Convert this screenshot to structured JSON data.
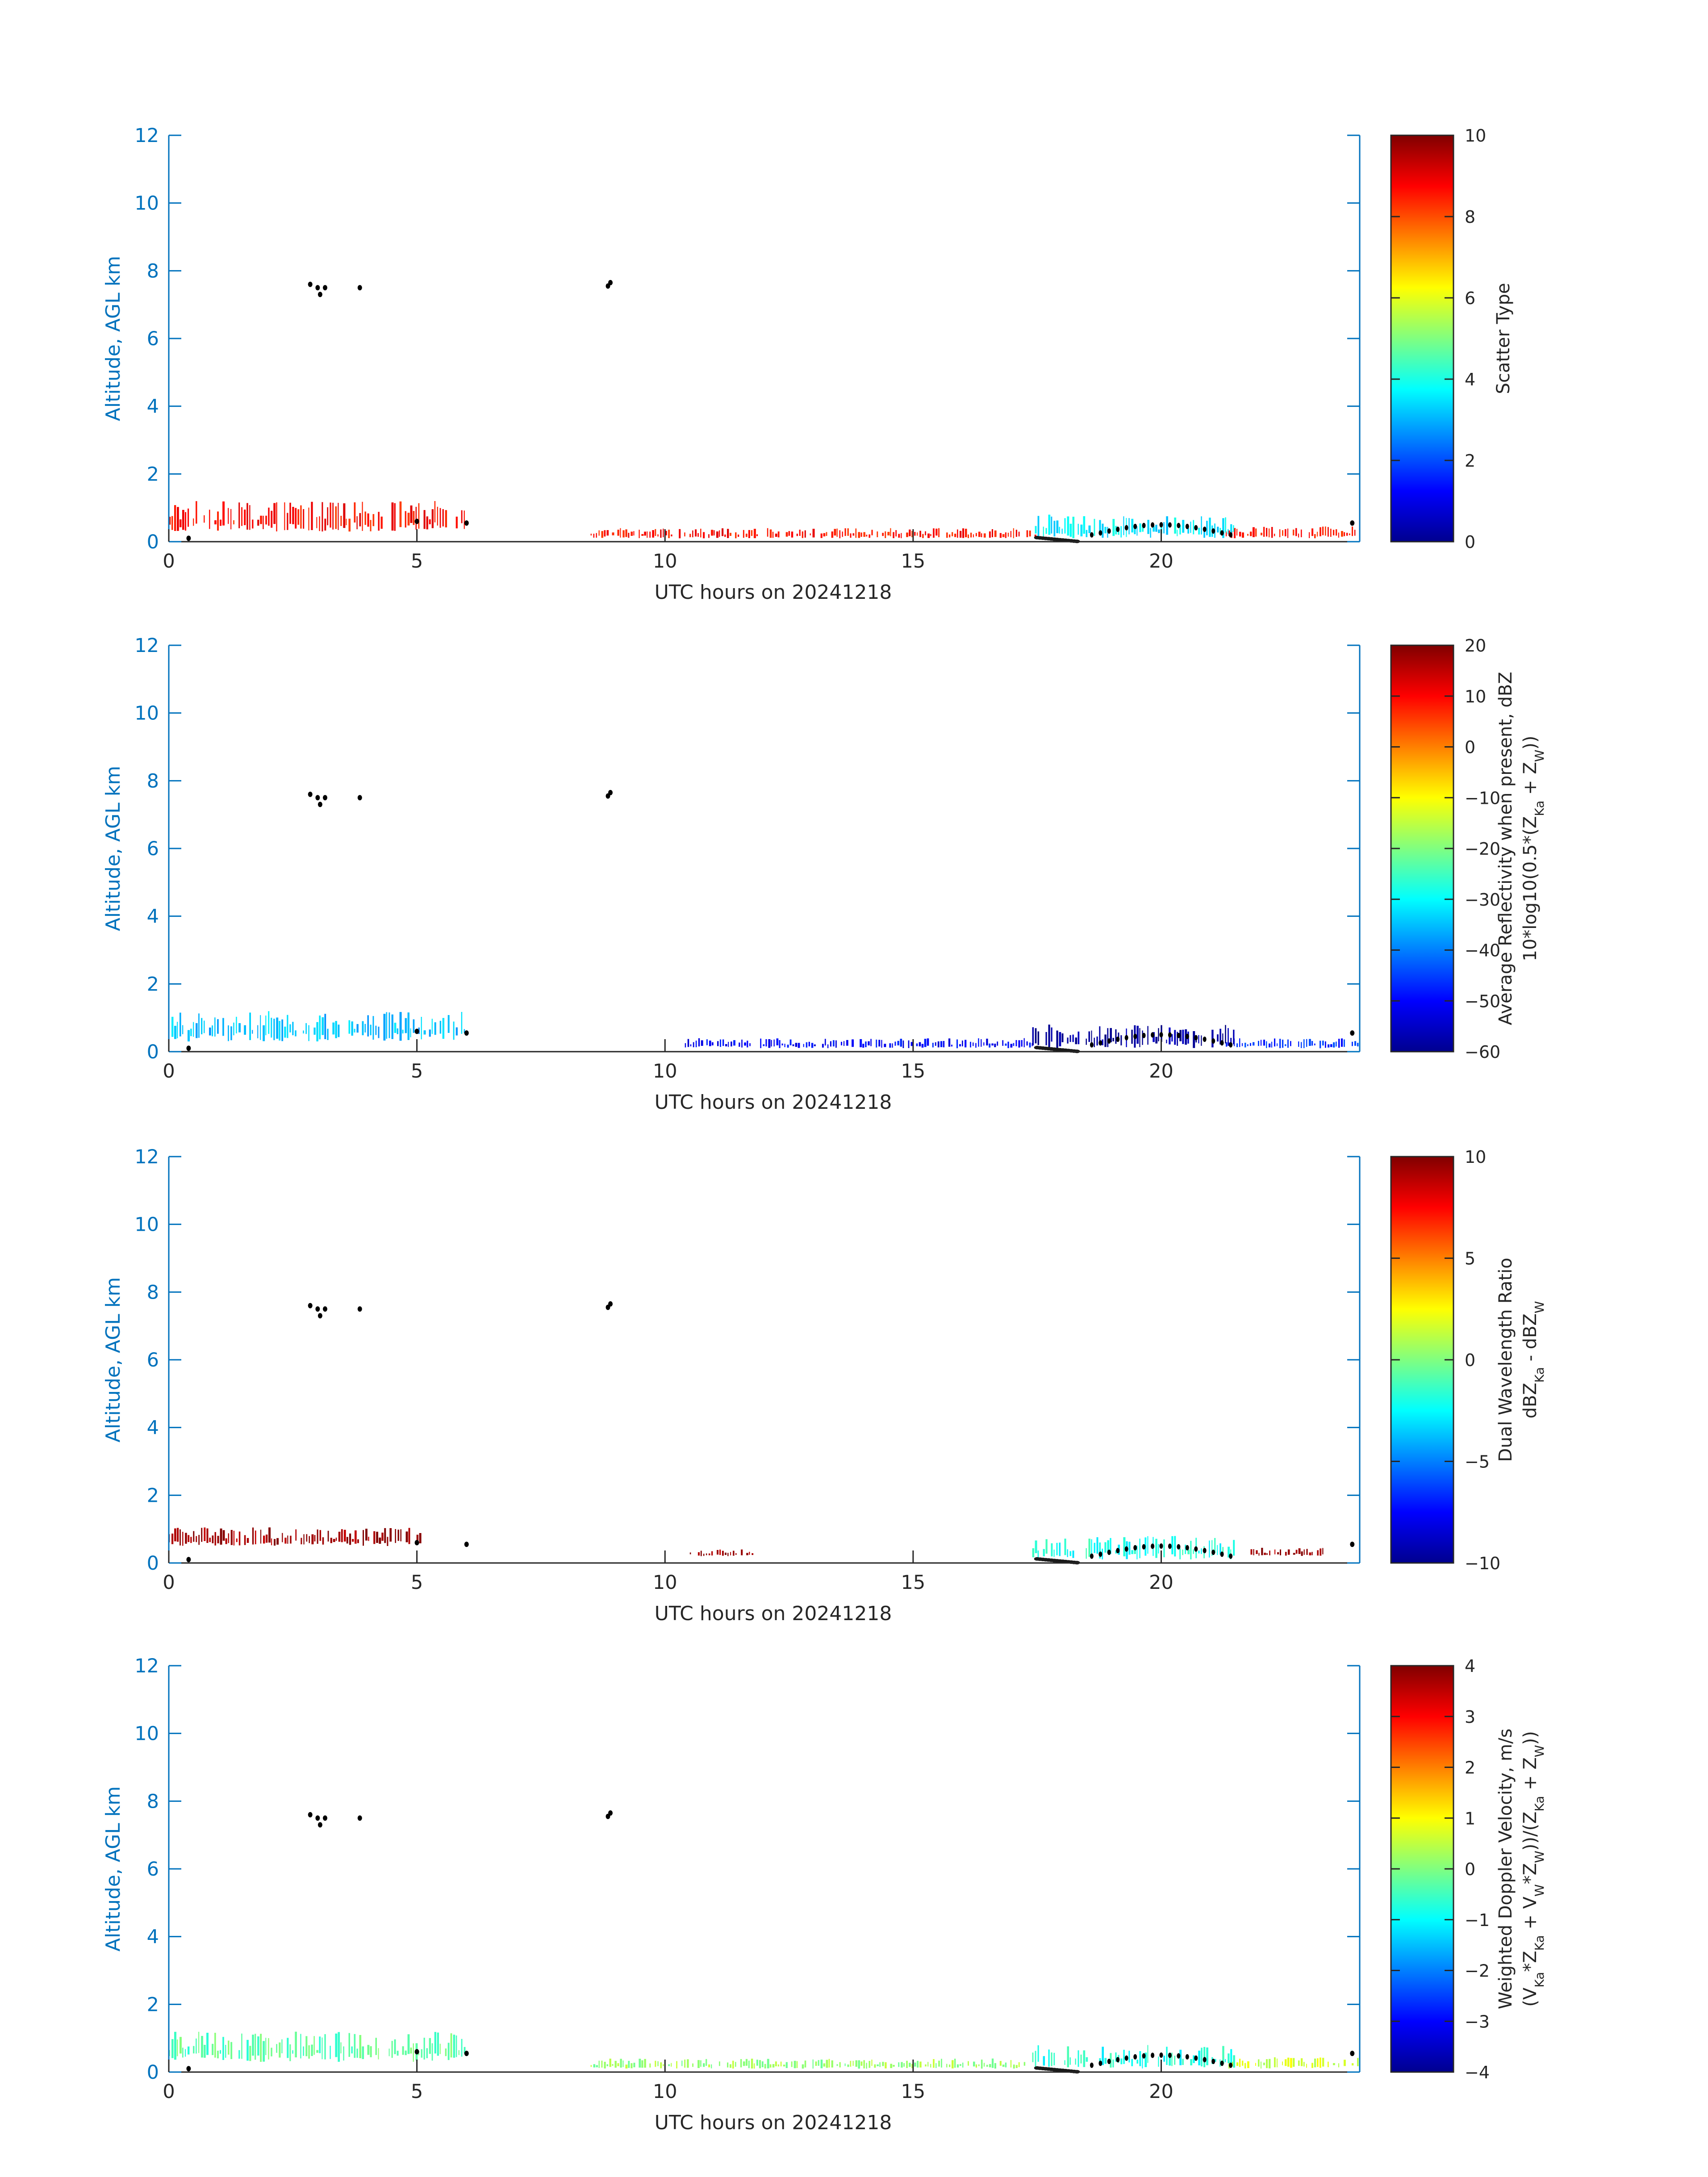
{
  "colors": {
    "axis_left": "#0072bd",
    "axis_dark": "#262626",
    "background": "#ffffff"
  },
  "chart_data": [
    {
      "type": "heatmap",
      "xlabel": "UTC hours on 20241218",
      "ylabel": "Altitude, AGL km",
      "xlim": [
        0,
        24
      ],
      "ylim": [
        0,
        12
      ],
      "xticks": [
        0,
        5,
        10,
        15,
        20
      ],
      "yticks": [
        0,
        2,
        4,
        6,
        8,
        10,
        12
      ],
      "colorbar": {
        "label_lines": [
          "Scatter Type"
        ],
        "range": [
          0,
          10
        ],
        "ticks": [
          0,
          2,
          4,
          6,
          8,
          10
        ]
      },
      "colormap": "jet",
      "layers": [
        {
          "name": "boundary layer echo early",
          "x_start": 0.0,
          "x_end": 6.0,
          "y_low": 0.3,
          "y_high": 1.2,
          "value": 8.6
        },
        {
          "name": "surface echo midday",
          "x_start": 8.5,
          "x_end": 17.5,
          "y_low": 0.1,
          "y_high": 0.4,
          "value": 8.6
        },
        {
          "name": "surface echo late",
          "x_start": 21.3,
          "x_end": 24.0,
          "y_low": 0.1,
          "y_high": 0.45,
          "value": 8.6
        },
        {
          "name": "cloud echo evening",
          "x_start": 17.4,
          "x_end": 21.5,
          "y_low": 0.1,
          "y_high": 0.8,
          "value": 3.6
        }
      ],
      "black_markers": [
        {
          "x": 2.85,
          "y": 7.6
        },
        {
          "x": 3.0,
          "y": 7.5
        },
        {
          "x": 3.05,
          "y": 7.3
        },
        {
          "x": 3.15,
          "y": 7.5
        },
        {
          "x": 3.85,
          "y": 7.5
        },
        {
          "x": 8.85,
          "y": 7.55
        },
        {
          "x": 8.9,
          "y": 7.65
        },
        {
          "x": 0.4,
          "y": 0.1
        },
        {
          "x": 5.0,
          "y": 0.6
        },
        {
          "x": 6.0,
          "y": 0.55
        },
        {
          "x": 23.85,
          "y": 0.55
        }
      ]
    },
    {
      "type": "heatmap",
      "xlabel": "UTC hours on 20241218",
      "ylabel": "Altitude, AGL km",
      "xlim": [
        0,
        24
      ],
      "ylim": [
        0,
        12
      ],
      "xticks": [
        0,
        5,
        10,
        15,
        20
      ],
      "yticks": [
        0,
        2,
        4,
        6,
        8,
        10,
        12
      ],
      "colorbar": {
        "label_lines": [
          "Average Reflectivity when present, dBZ",
          "10*log10(0.5*(Z_Ka + Z_W))"
        ],
        "range": [
          -60,
          20
        ],
        "ticks": [
          -60,
          -50,
          -40,
          -30,
          -20,
          -10,
          0,
          10,
          20
        ]
      },
      "colormap": "jet",
      "layers": [
        {
          "name": "boundary layer echo early",
          "x_start": 0.0,
          "x_end": 6.0,
          "y_low": 0.3,
          "y_high": 1.2,
          "value": -35
        },
        {
          "name": "surface echo midday",
          "x_start": 10.4,
          "x_end": 17.5,
          "y_low": 0.1,
          "y_high": 0.4,
          "value": -50
        },
        {
          "name": "surface echo late",
          "x_start": 21.3,
          "x_end": 24.0,
          "y_low": 0.1,
          "y_high": 0.4,
          "value": -47
        },
        {
          "name": "cloud echo evening",
          "x_start": 17.4,
          "x_end": 21.5,
          "y_low": 0.1,
          "y_high": 0.8,
          "value": -58
        }
      ],
      "black_markers": [
        {
          "x": 2.85,
          "y": 7.6
        },
        {
          "x": 3.0,
          "y": 7.5
        },
        {
          "x": 3.05,
          "y": 7.3
        },
        {
          "x": 3.15,
          "y": 7.5
        },
        {
          "x": 3.85,
          "y": 7.5
        },
        {
          "x": 8.85,
          "y": 7.55
        },
        {
          "x": 8.9,
          "y": 7.65
        },
        {
          "x": 0.4,
          "y": 0.1
        },
        {
          "x": 5.0,
          "y": 0.6
        },
        {
          "x": 6.0,
          "y": 0.55
        },
        {
          "x": 23.85,
          "y": 0.55
        }
      ]
    },
    {
      "type": "heatmap",
      "xlabel": "UTC hours on 20241218",
      "ylabel": "Altitude, AGL km",
      "xlim": [
        0,
        24
      ],
      "ylim": [
        0,
        12
      ],
      "xticks": [
        0,
        5,
        10,
        15,
        20
      ],
      "yticks": [
        0,
        2,
        4,
        6,
        8,
        10,
        12
      ],
      "colorbar": {
        "label_lines": [
          "Dual Wavelength Ratio",
          "dBZ_Ka - dBZ_W"
        ],
        "range": [
          -10,
          10
        ],
        "ticks": [
          -10,
          -5,
          0,
          5,
          10
        ]
      },
      "colormap": "jet",
      "layers": [
        {
          "name": "boundary layer echo early",
          "x_start": 0.0,
          "x_end": 5.1,
          "y_low": 0.5,
          "y_high": 1.05,
          "value": 9.5
        },
        {
          "name": "surface echo midday",
          "x_start": 10.5,
          "x_end": 11.8,
          "y_low": 0.2,
          "y_high": 0.4,
          "value": 9.5
        },
        {
          "name": "surface echo late",
          "x_start": 21.8,
          "x_end": 23.3,
          "y_low": 0.2,
          "y_high": 0.45,
          "value": 9.5
        },
        {
          "name": "cloud echo evening",
          "x_start": 17.4,
          "x_end": 21.5,
          "y_low": 0.1,
          "y_high": 0.8,
          "value": -2
        }
      ],
      "black_markers": [
        {
          "x": 2.85,
          "y": 7.6
        },
        {
          "x": 3.0,
          "y": 7.5
        },
        {
          "x": 3.05,
          "y": 7.3
        },
        {
          "x": 3.15,
          "y": 7.5
        },
        {
          "x": 3.85,
          "y": 7.5
        },
        {
          "x": 8.85,
          "y": 7.55
        },
        {
          "x": 8.9,
          "y": 7.65
        },
        {
          "x": 0.4,
          "y": 0.1
        },
        {
          "x": 5.0,
          "y": 0.6
        },
        {
          "x": 6.0,
          "y": 0.55
        },
        {
          "x": 23.85,
          "y": 0.55
        }
      ]
    },
    {
      "type": "heatmap",
      "xlabel": "UTC hours on 20241218",
      "ylabel": "Altitude, AGL km",
      "xlim": [
        0,
        24
      ],
      "ylim": [
        0,
        12
      ],
      "xticks": [
        0,
        5,
        10,
        15,
        20
      ],
      "yticks": [
        0,
        2,
        4,
        6,
        8,
        10,
        12
      ],
      "colorbar": {
        "label_lines": [
          "Weighted Doppler Velocity, m/s",
          "(V_Ka*Z_Ka + V_W*Z_W))/(Z_Ka + Z_W))"
        ],
        "range": [
          -4,
          4
        ],
        "ticks": [
          -4,
          -3,
          -2,
          -1,
          0,
          1,
          2,
          3,
          4
        ]
      },
      "colormap": "jet",
      "layers": [
        {
          "name": "boundary layer echo early",
          "x_start": 0.0,
          "x_end": 6.0,
          "y_low": 0.3,
          "y_high": 1.2,
          "value": -0.3
        },
        {
          "name": "surface echo midday",
          "x_start": 8.5,
          "x_end": 17.5,
          "y_low": 0.1,
          "y_high": 0.4,
          "value": 0.2
        },
        {
          "name": "surface echo late",
          "x_start": 21.3,
          "x_end": 24.0,
          "y_low": 0.1,
          "y_high": 0.45,
          "value": 0.6
        },
        {
          "name": "cloud echo evening",
          "x_start": 17.4,
          "x_end": 21.5,
          "y_low": 0.1,
          "y_high": 0.8,
          "value": -0.8
        }
      ],
      "black_markers": [
        {
          "x": 2.85,
          "y": 7.6
        },
        {
          "x": 3.0,
          "y": 7.5
        },
        {
          "x": 3.05,
          "y": 7.3
        },
        {
          "x": 3.15,
          "y": 7.5
        },
        {
          "x": 3.85,
          "y": 7.5
        },
        {
          "x": 8.85,
          "y": 7.55
        },
        {
          "x": 8.9,
          "y": 7.65
        },
        {
          "x": 0.4,
          "y": 0.1
        },
        {
          "x": 5.0,
          "y": 0.6
        },
        {
          "x": 6.0,
          "y": 0.55
        },
        {
          "x": 23.85,
          "y": 0.55
        }
      ]
    }
  ]
}
